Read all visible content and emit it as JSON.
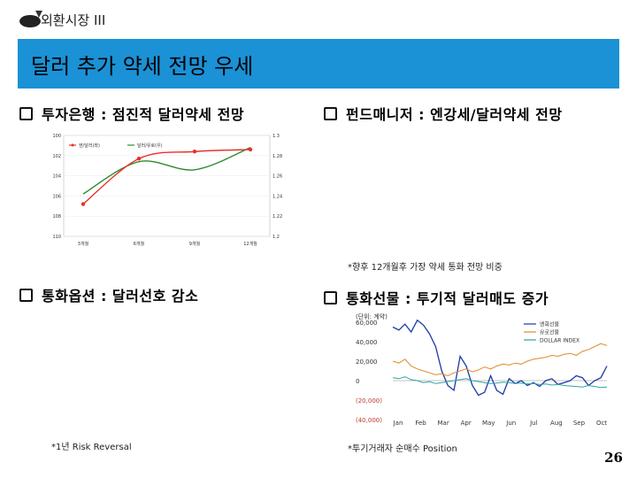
{
  "header": {
    "section_title": "외환시장 III"
  },
  "slide": {
    "title": "달러 추가 약세 전망 우세"
  },
  "sections": {
    "investment_banks": {
      "heading": "투자은행 : 점진적 달러약세 전망"
    },
    "fund_managers": {
      "heading": "펀드매니저 : 엔강세/달러약세 전망",
      "note": "*향후 12개월후 가장 약세 통화 전망 비중"
    },
    "currency_options": {
      "heading": "통화옵션 : 달러선호 감소",
      "note": "*1년 Risk Reversal"
    },
    "currency_futures": {
      "heading": "통화선물 : 투기적 달러매도 증가",
      "note": "*투기거래자 순매수 Position"
    }
  },
  "colors": {
    "banner": "#1b91d6",
    "red_series": "#e8302a",
    "green_series": "#2e8b2e",
    "blue_series": "#1a3aa8",
    "orange_series": "#e08a2a",
    "teal_series": "#2aa5a0"
  },
  "page_number": "26",
  "chart_data": [
    {
      "type": "line",
      "title": "",
      "categories": [
        "3개월",
        "6개월",
        "9개월",
        "12개월"
      ],
      "legend": [
        "엔/달러(좌)",
        "달러/유로(우)"
      ],
      "left_axis": {
        "ticks": [
          "100",
          "102",
          "104",
          "106",
          "108",
          "110"
        ],
        "inverted": true,
        "range": [
          100,
          110
        ]
      },
      "right_axis": {
        "ticks": [
          "1.3",
          "1.28",
          "1.26",
          "1.24",
          "1.22",
          "1.2"
        ],
        "range": [
          1.2,
          1.3
        ]
      },
      "series": [
        {
          "name": "엔/달러(좌)",
          "axis": "left",
          "values": [
            106.8,
            102.3,
            101.6,
            101.4
          ]
        },
        {
          "name": "달러/유로(우)",
          "axis": "right",
          "values": [
            1.242,
            1.274,
            1.266,
            1.288
          ]
        }
      ]
    },
    {
      "type": "line",
      "title": "",
      "unit_label": "(단위: 계약)",
      "legend": [
        "엔화선물",
        "유로선물",
        "DOLLAR INDEX"
      ],
      "y_ticks": [
        "60,000",
        "40,000",
        "20,000",
        "0",
        "(20,000)",
        "(40,000)"
      ],
      "ylim": [
        -40000,
        60000
      ],
      "x_ticks": [
        "Jan",
        "Feb",
        "Mar",
        "Apr",
        "May",
        "Jun",
        "Jul",
        "Aug",
        "Sep",
        "Oct"
      ],
      "series": [
        {
          "name": "엔화선물",
          "values": [
            55000,
            52000,
            58000,
            50000,
            62000,
            57000,
            48000,
            35000,
            10000,
            -5000,
            -10000,
            25000,
            15000,
            -5000,
            -15000,
            -12000,
            5000,
            -10000,
            -14000,
            2000,
            -3000,
            0,
            -5000,
            -2000,
            -6000,
            0,
            2000,
            -4000,
            -2000,
            0,
            5000,
            3000,
            -5000,
            0,
            3000,
            15000
          ]
        },
        {
          "name": "유로선물",
          "values": [
            20000,
            18000,
            22000,
            15000,
            12000,
            10000,
            8000,
            6000,
            7000,
            5000,
            8000,
            10000,
            12000,
            9000,
            11000,
            14000,
            12000,
            15000,
            17000,
            16000,
            18000,
            17000,
            20000,
            22000,
            23000,
            24000,
            26000,
            25000,
            27000,
            28000,
            26000,
            30000,
            32000,
            35000,
            38000,
            36000
          ]
        },
        {
          "name": "DOLLAR INDEX",
          "values": [
            3000,
            2000,
            4000,
            1000,
            0,
            -2000,
            -1000,
            -3000,
            -2000,
            -1000,
            0,
            1000,
            2000,
            0,
            -1000,
            -2000,
            -3000,
            -2500,
            -1500,
            -2000,
            -3000,
            -2500,
            -3500,
            -3000,
            -4000,
            -3500,
            -4500,
            -4000,
            -5000,
            -5500,
            -6000,
            -6500,
            -5000,
            -6000,
            -7000,
            -6500
          ]
        }
      ]
    }
  ]
}
